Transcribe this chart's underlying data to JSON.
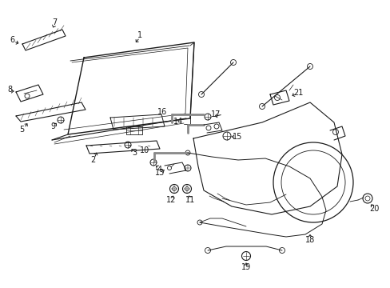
{
  "bg_color": "#ffffff",
  "line_color": "#1a1a1a",
  "gray_color": "#888888",
  "figsize": [
    4.89,
    3.6
  ],
  "dpi": 100
}
